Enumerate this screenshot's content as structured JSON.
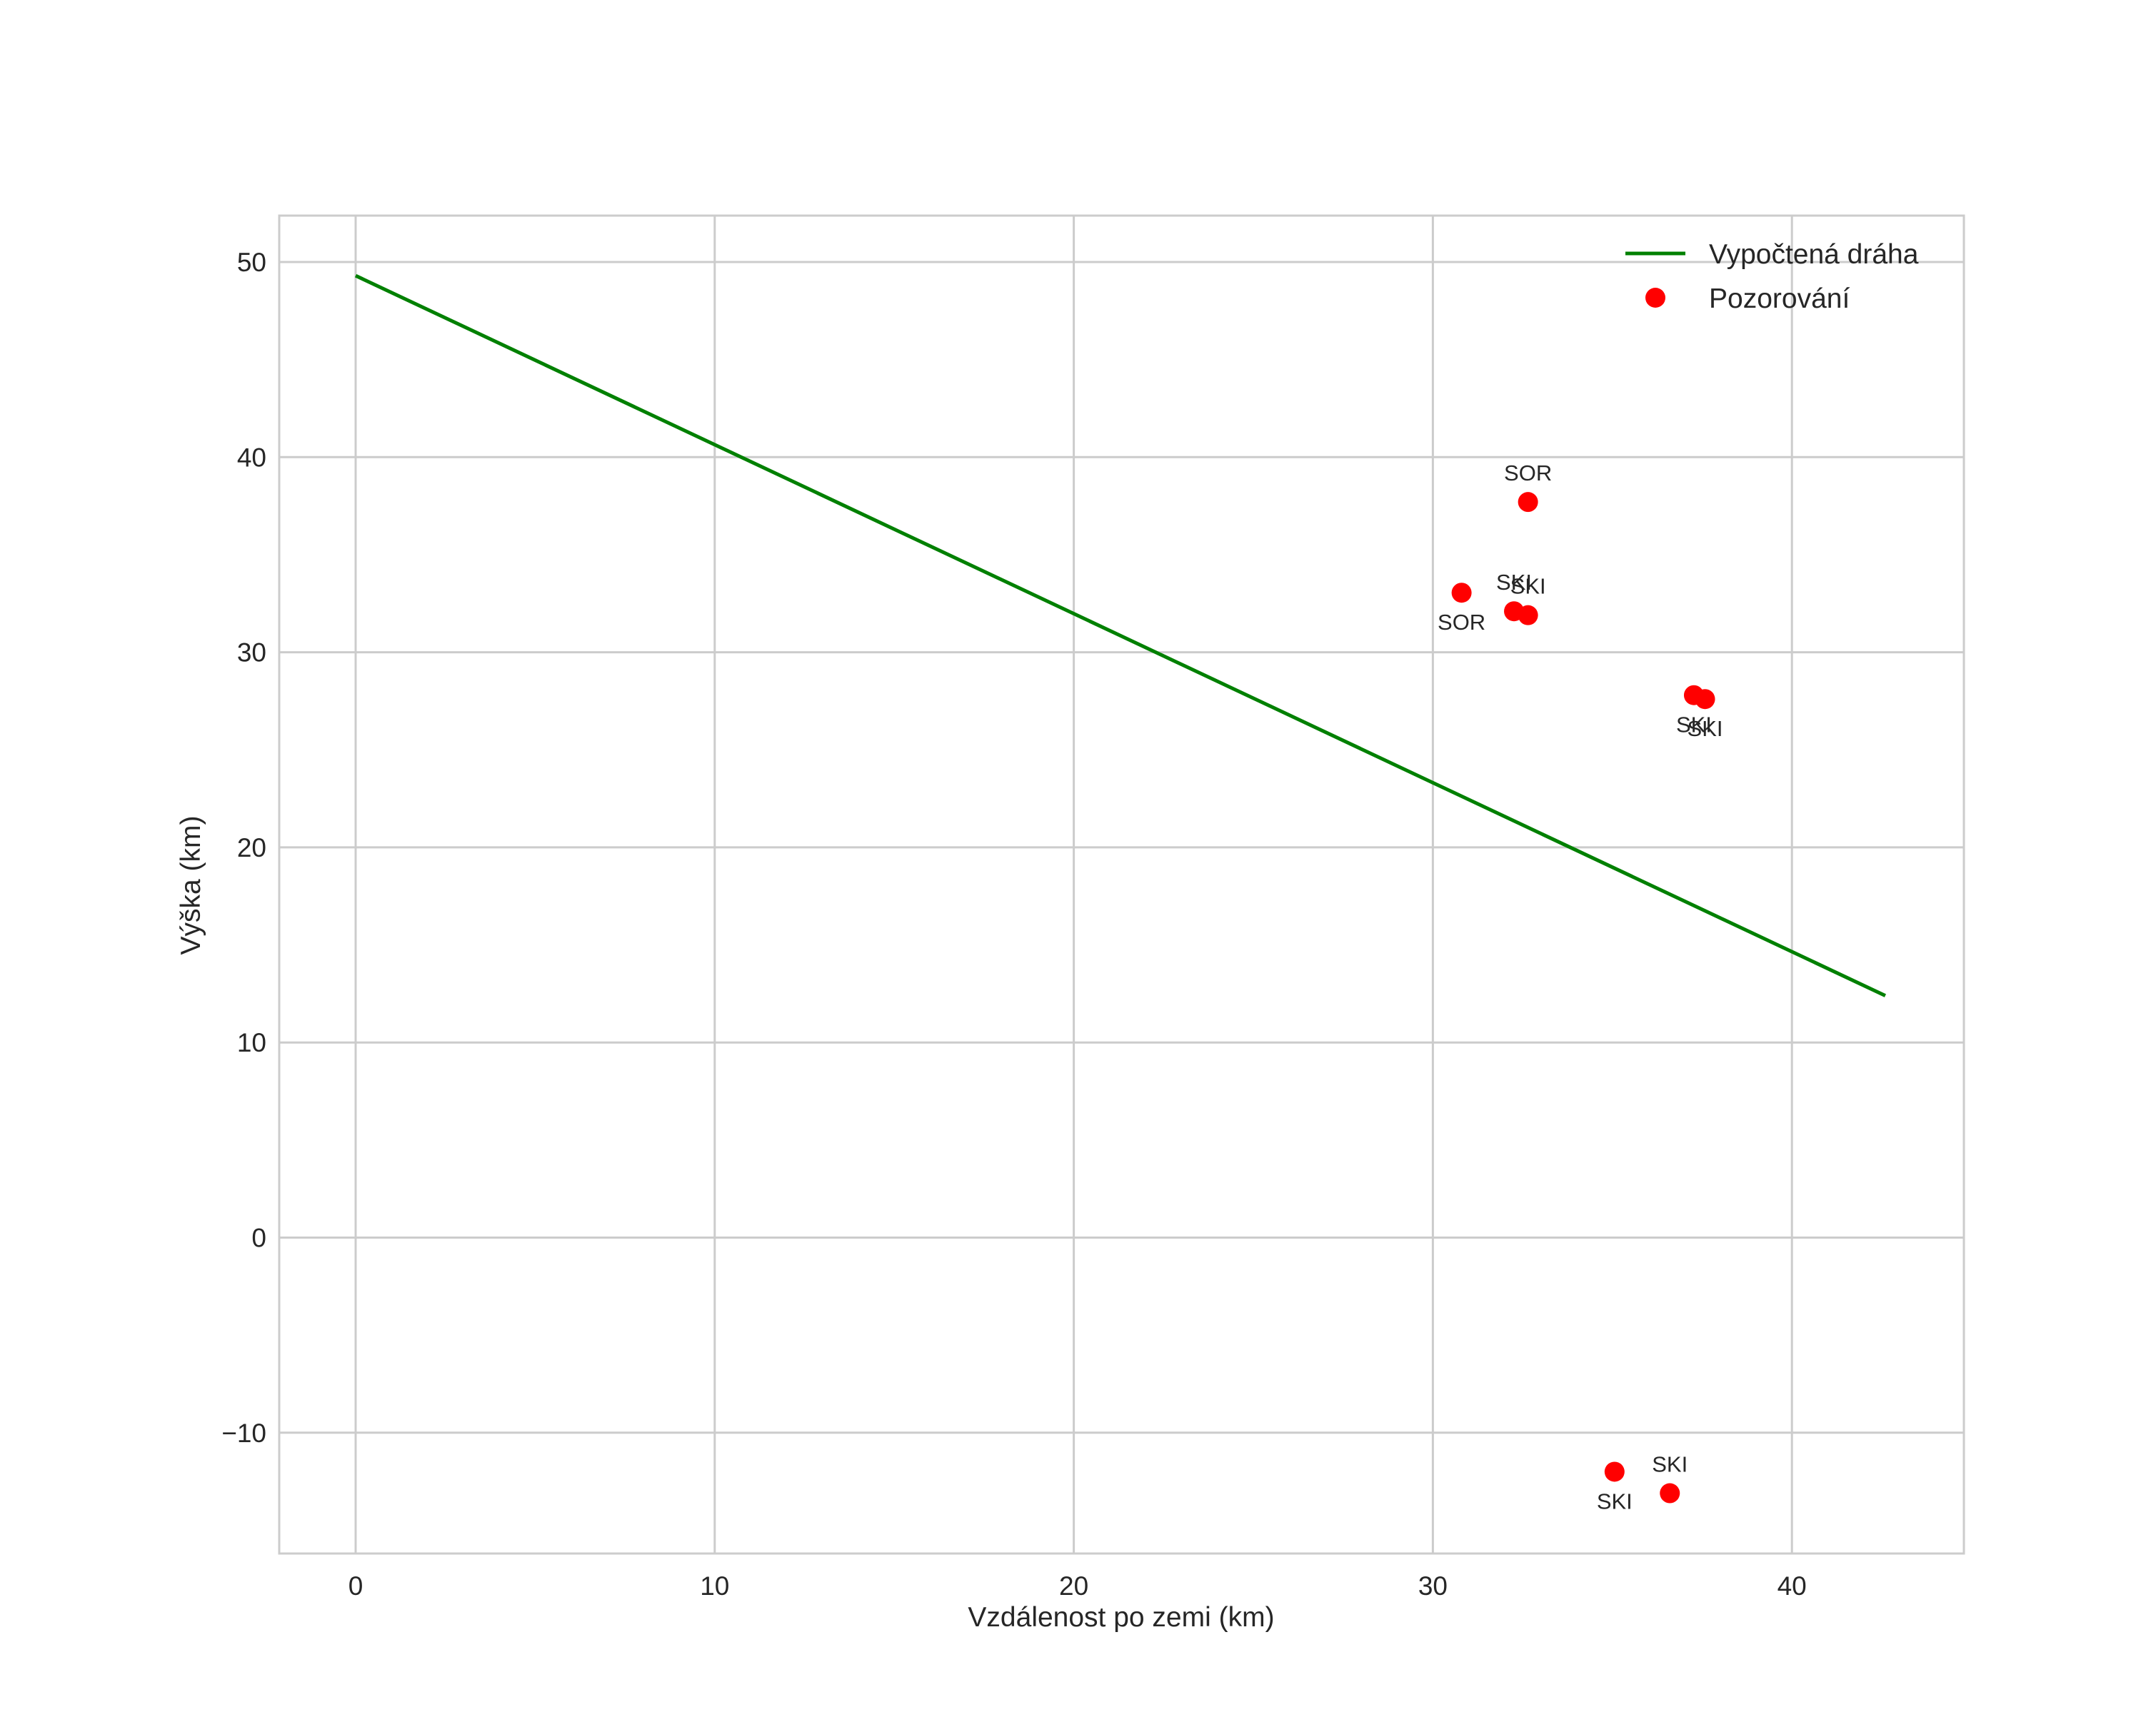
{
  "chart_data": {
    "type": "scatter",
    "title": "",
    "xlabel": "Vzdálenost po zemi (km)",
    "ylabel": "Výška (km)",
    "xlim": [
      -2.2,
      44.8
    ],
    "ylim": [
      -16.2,
      52.4
    ],
    "grid": true,
    "legend_position": "upper right",
    "x_ticks": [
      0,
      10,
      20,
      30,
      40
    ],
    "x_tick_labels": [
      "0",
      "10",
      "20",
      "30",
      "40"
    ],
    "y_ticks": [
      -10,
      0,
      10,
      20,
      30,
      40,
      50
    ],
    "y_tick_labels": [
      "−10",
      "0",
      "10",
      "20",
      "30",
      "40",
      "50"
    ],
    "series": [
      {
        "name": "Vypočtená dráha",
        "type": "line",
        "color": "#008000",
        "x": [
          0,
          42.6
        ],
        "y": [
          49.3,
          12.4
        ]
      },
      {
        "name": "Pozorování",
        "type": "scatter",
        "color": "#ff0000",
        "points": [
          {
            "x": 32.65,
            "y": 37.7,
            "label": "SOR",
            "label_pos": "above"
          },
          {
            "x": 30.8,
            "y": 33.05,
            "label": "SOR",
            "label_pos": "below"
          },
          {
            "x": 32.26,
            "y": 32.1,
            "label": "SKI",
            "label_pos": "above"
          },
          {
            "x": 32.65,
            "y": 31.9,
            "label": "SKI",
            "label_pos": "above"
          },
          {
            "x": 37.27,
            "y": 27.8,
            "label": "SKI",
            "label_pos": "below"
          },
          {
            "x": 37.58,
            "y": 27.6,
            "label": "SKI",
            "label_pos": "below"
          },
          {
            "x": 35.06,
            "y": -12.0,
            "label": "SKI",
            "label_pos": "below"
          },
          {
            "x": 36.6,
            "y": -13.1,
            "label": "SKI",
            "label_pos": "above"
          }
        ]
      }
    ]
  },
  "legend": {
    "items": [
      {
        "label": "Vypočtená dráha",
        "marker": "line",
        "color": "#008000"
      },
      {
        "label": "Pozorování",
        "marker": "dot",
        "color": "#ff0000"
      }
    ]
  },
  "colors": {
    "grid": "#cccccc",
    "spine": "#cccccc",
    "text": "#262626",
    "line": "#008000",
    "points": "#ff0000"
  }
}
